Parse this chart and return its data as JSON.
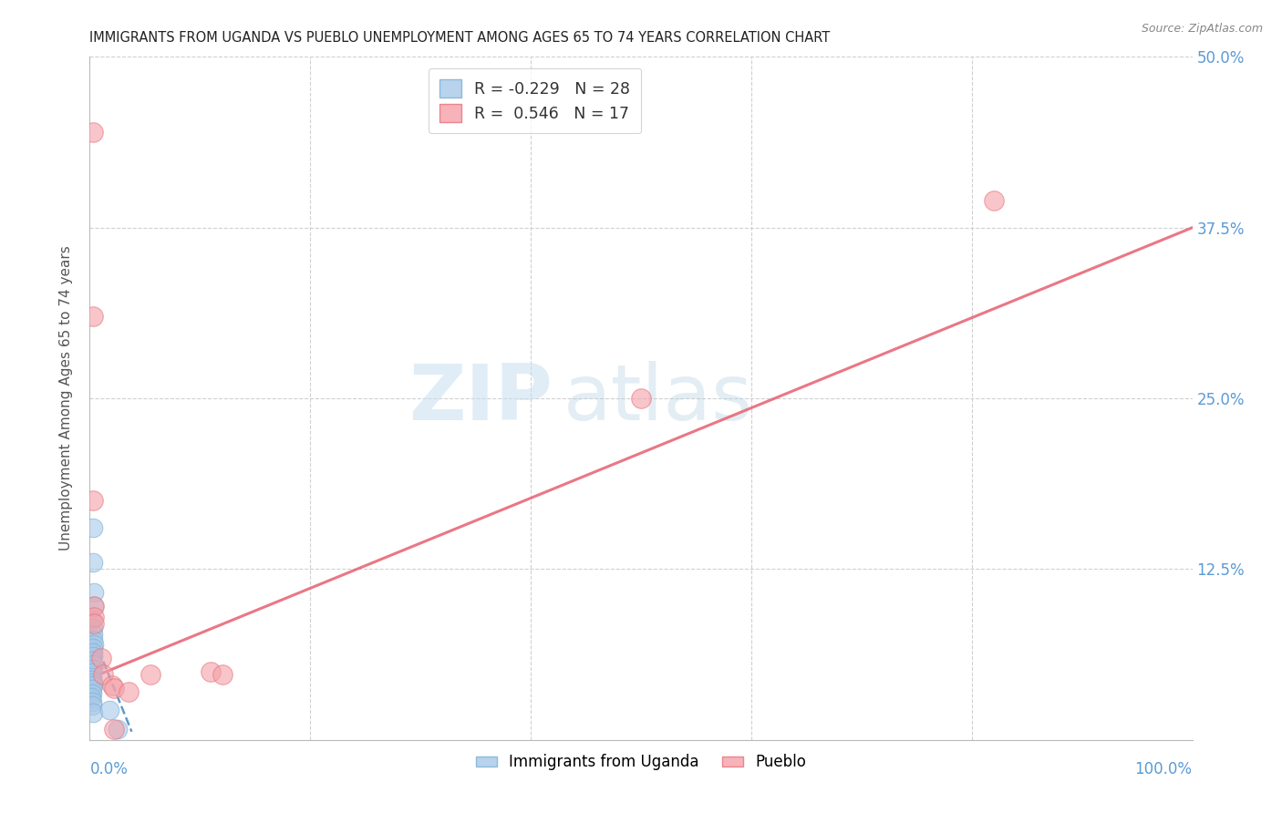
{
  "title": "IMMIGRANTS FROM UGANDA VS PUEBLO UNEMPLOYMENT AMONG AGES 65 TO 74 YEARS CORRELATION CHART",
  "source": "Source: ZipAtlas.com",
  "ylabel": "Unemployment Among Ages 65 to 74 years",
  "xlim": [
    0,
    1.0
  ],
  "ylim": [
    0,
    0.5
  ],
  "x_ticks": [
    0.0,
    0.2,
    0.4,
    0.6,
    0.8,
    1.0
  ],
  "y_ticks": [
    0.0,
    0.125,
    0.25,
    0.375,
    0.5
  ],
  "y_tick_labels": [
    "",
    "12.5%",
    "25.0%",
    "37.5%",
    "50.0%"
  ],
  "legend_blue_r": "-0.229",
  "legend_blue_n": "28",
  "legend_pink_r": "0.546",
  "legend_pink_n": "17",
  "watermark_zip": "ZIP",
  "watermark_atlas": "atlas",
  "blue_color": "#a8c8e8",
  "blue_edge_color": "#7bafd4",
  "pink_color": "#f4a0a8",
  "pink_edge_color": "#e8707a",
  "blue_line_color": "#4a90c8",
  "pink_line_color": "#e86878",
  "title_color": "#222222",
  "axis_label_color": "#555555",
  "tick_color_right": "#5b9bd5",
  "tick_color_bottom": "#5b9bd5",
  "grid_color": "#d0d0d0",
  "blue_points": [
    [
      0.003,
      0.155
    ],
    [
      0.003,
      0.13
    ],
    [
      0.004,
      0.108
    ],
    [
      0.004,
      0.098
    ],
    [
      0.002,
      0.088
    ],
    [
      0.003,
      0.082
    ],
    [
      0.003,
      0.077
    ],
    [
      0.003,
      0.073
    ],
    [
      0.004,
      0.07
    ],
    [
      0.003,
      0.067
    ],
    [
      0.003,
      0.064
    ],
    [
      0.003,
      0.061
    ],
    [
      0.002,
      0.058
    ],
    [
      0.003,
      0.055
    ],
    [
      0.003,
      0.052
    ],
    [
      0.002,
      0.049
    ],
    [
      0.002,
      0.046
    ],
    [
      0.002,
      0.044
    ],
    [
      0.003,
      0.042
    ],
    [
      0.003,
      0.04
    ],
    [
      0.002,
      0.037
    ],
    [
      0.002,
      0.034
    ],
    [
      0.001,
      0.031
    ],
    [
      0.002,
      0.028
    ],
    [
      0.002,
      0.025
    ],
    [
      0.003,
      0.02
    ],
    [
      0.018,
      0.022
    ],
    [
      0.025,
      0.008
    ]
  ],
  "pink_points": [
    [
      0.003,
      0.445
    ],
    [
      0.003,
      0.31
    ],
    [
      0.003,
      0.175
    ],
    [
      0.004,
      0.098
    ],
    [
      0.004,
      0.09
    ],
    [
      0.004,
      0.085
    ],
    [
      0.01,
      0.06
    ],
    [
      0.012,
      0.048
    ],
    [
      0.02,
      0.04
    ],
    [
      0.022,
      0.038
    ],
    [
      0.035,
      0.035
    ],
    [
      0.055,
      0.048
    ],
    [
      0.11,
      0.05
    ],
    [
      0.5,
      0.25
    ],
    [
      0.82,
      0.395
    ],
    [
      0.12,
      0.048
    ],
    [
      0.022,
      0.008
    ]
  ],
  "blue_line_x": [
    0.0,
    0.038
  ],
  "blue_line_y": [
    0.082,
    0.006
  ],
  "pink_line_x": [
    0.0,
    1.0
  ],
  "pink_line_y": [
    0.045,
    0.375
  ],
  "grid_vlines": [
    0.2,
    0.4,
    0.6,
    0.8
  ]
}
